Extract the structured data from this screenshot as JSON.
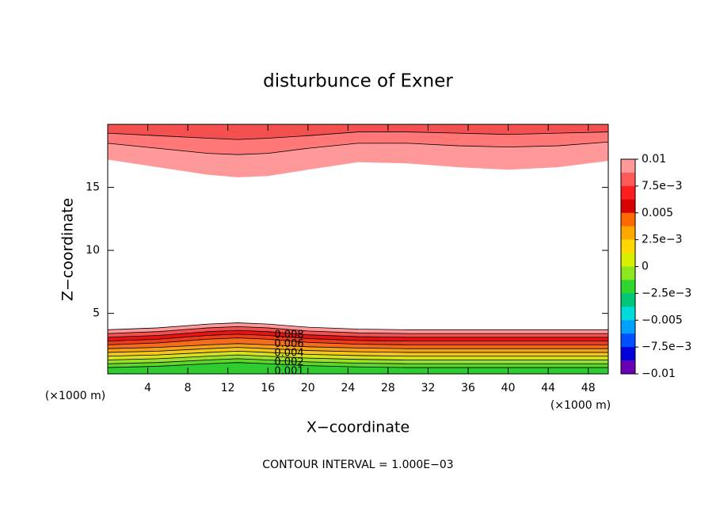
{
  "chart_data": {
    "type": "contour",
    "title": "disturbunce of Exner",
    "xlabel": "X−coordinate",
    "ylabel": "Z−coordinate",
    "x_unit": "(×1000 m)",
    "footer": "CONTOUR INTERVAL = 1.000E−03",
    "xlim": [
      0,
      50
    ],
    "ylim": [
      0.2,
      20
    ],
    "xticks": [
      4,
      8,
      12,
      16,
      20,
      24,
      28,
      32,
      36,
      40,
      44,
      48
    ],
    "yticks": [
      5,
      10,
      15
    ],
    "x": [
      0,
      5,
      10,
      13,
      16,
      20,
      25,
      30,
      35,
      40,
      45,
      50
    ],
    "bottom_layers": [
      {
        "color": "#2ecc2e",
        "top": [
          0.7,
          0.8,
          1.0,
          1.1,
          1.0,
          0.85,
          0.75,
          0.7,
          0.7,
          0.7,
          0.7,
          0.7
        ]
      },
      {
        "color": "#5cd62b",
        "top": [
          1.0,
          1.1,
          1.3,
          1.4,
          1.3,
          1.15,
          1.05,
          1.0,
          1.0,
          1.0,
          1.0,
          1.0
        ]
      },
      {
        "color": "#9adf2c",
        "top": [
          1.3,
          1.4,
          1.6,
          1.7,
          1.6,
          1.45,
          1.35,
          1.3,
          1.3,
          1.3,
          1.3,
          1.3
        ]
      },
      {
        "color": "#d4e31d",
        "top": [
          1.6,
          1.7,
          1.9,
          2.0,
          1.9,
          1.75,
          1.65,
          1.6,
          1.6,
          1.6,
          1.6,
          1.6
        ]
      },
      {
        "color": "#f5c617",
        "top": [
          1.9,
          2.0,
          2.2,
          2.3,
          2.2,
          2.05,
          1.95,
          1.9,
          1.9,
          1.9,
          1.9,
          1.9
        ]
      },
      {
        "color": "#f5a01a",
        "top": [
          2.2,
          2.3,
          2.5,
          2.6,
          2.5,
          2.35,
          2.25,
          2.2,
          2.2,
          2.2,
          2.2,
          2.2
        ]
      },
      {
        "color": "#f56d1a",
        "top": [
          2.5,
          2.65,
          2.95,
          3.05,
          2.95,
          2.7,
          2.55,
          2.5,
          2.5,
          2.5,
          2.5,
          2.5
        ]
      },
      {
        "color": "#f03a1a",
        "top": [
          2.8,
          2.95,
          3.25,
          3.35,
          3.25,
          3.0,
          2.85,
          2.8,
          2.8,
          2.8,
          2.8,
          2.8
        ]
      },
      {
        "color": "#e81414",
        "top": [
          3.1,
          3.25,
          3.55,
          3.65,
          3.55,
          3.3,
          3.15,
          3.1,
          3.1,
          3.1,
          3.1,
          3.1
        ]
      },
      {
        "color": "#f55050",
        "top": [
          3.4,
          3.55,
          3.85,
          3.95,
          3.85,
          3.6,
          3.45,
          3.4,
          3.4,
          3.4,
          3.4,
          3.4
        ]
      },
      {
        "color": "#ff9999",
        "top": [
          3.7,
          3.85,
          4.15,
          4.25,
          4.15,
          3.9,
          3.75,
          3.7,
          3.7,
          3.7,
          3.7,
          3.7
        ]
      }
    ],
    "top_layers": [
      {
        "color": "#f55050",
        "bottom": [
          19.3,
          19.1,
          18.9,
          18.8,
          18.9,
          19.1,
          19.4,
          19.4,
          19.3,
          19.2,
          19.3,
          19.4
        ]
      },
      {
        "color": "#ff7777",
        "bottom": [
          18.5,
          18.1,
          17.7,
          17.6,
          17.7,
          18.1,
          18.5,
          18.5,
          18.3,
          18.2,
          18.3,
          18.6
        ]
      },
      {
        "color": "#ff9999",
        "bottom": [
          17.2,
          16.6,
          16.0,
          15.8,
          15.9,
          16.4,
          17.0,
          16.9,
          16.6,
          16.4,
          16.6,
          17.1
        ]
      }
    ],
    "contour_labels": [
      "0.008",
      "0.006",
      "0.004",
      "0.002",
      "0.001"
    ],
    "colorbar": {
      "lim": [
        -0.01,
        0.01
      ],
      "ticks": [
        0.01,
        {
          "value": 0.0075,
          "label": "7.5e−3"
        },
        0.005,
        {
          "value": 0.0025,
          "label": "2.5e−3"
        },
        0,
        {
          "value": -0.0025,
          "label": "−2.5e−3"
        },
        {
          "value": -0.005,
          "label": "−0.005"
        },
        {
          "value": -0.0075,
          "label": "−7.5e−3"
        },
        {
          "value": -0.01,
          "label": "−0.01"
        }
      ],
      "colors": [
        "#ff9999",
        "#ff5a5a",
        "#ff1e1e",
        "#d80000",
        "#ff6a00",
        "#ffa800",
        "#ffd800",
        "#d8f000",
        "#8ee61e",
        "#2ed62e",
        "#00c878",
        "#00dcdc",
        "#00a0ff",
        "#0050ff",
        "#0000dc",
        "#6a00b4"
      ]
    }
  }
}
